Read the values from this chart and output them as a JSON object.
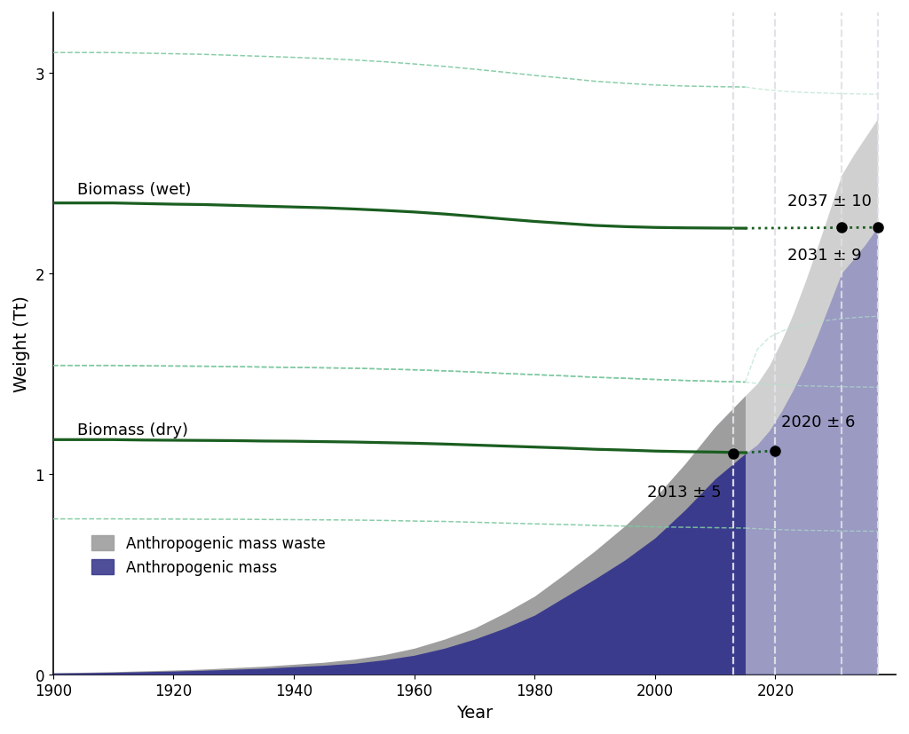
{
  "years_hist": [
    1900,
    1905,
    1910,
    1915,
    1920,
    1925,
    1930,
    1935,
    1940,
    1945,
    1950,
    1955,
    1960,
    1965,
    1970,
    1975,
    1980,
    1985,
    1990,
    1995,
    2000,
    2005,
    2010,
    2015
  ],
  "years_proj": [
    2015,
    2017,
    2019,
    2021,
    2023,
    2025,
    2027,
    2029,
    2031,
    2033,
    2035,
    2037
  ],
  "anthro_mass_hist": [
    0.006,
    0.008,
    0.01,
    0.013,
    0.016,
    0.02,
    0.025,
    0.03,
    0.038,
    0.045,
    0.055,
    0.072,
    0.095,
    0.13,
    0.175,
    0.23,
    0.295,
    0.385,
    0.475,
    0.57,
    0.68,
    0.82,
    0.975,
    1.1
  ],
  "anthro_mass_proj": [
    1.1,
    1.145,
    1.215,
    1.31,
    1.42,
    1.545,
    1.69,
    1.845,
    2.0,
    2.07,
    2.145,
    2.23
  ],
  "anthro_waste_hist": [
    0.008,
    0.01,
    0.013,
    0.017,
    0.021,
    0.026,
    0.033,
    0.04,
    0.05,
    0.06,
    0.075,
    0.098,
    0.13,
    0.175,
    0.23,
    0.305,
    0.39,
    0.5,
    0.615,
    0.74,
    0.88,
    1.05,
    1.235,
    1.39
  ],
  "anthro_waste_proj": [
    1.39,
    1.45,
    1.54,
    1.66,
    1.8,
    1.96,
    2.13,
    2.31,
    2.49,
    2.59,
    2.68,
    2.77
  ],
  "biomass_dry_hist": [
    1.17,
    1.17,
    1.17,
    1.168,
    1.167,
    1.166,
    1.165,
    1.163,
    1.162,
    1.16,
    1.158,
    1.155,
    1.152,
    1.148,
    1.143,
    1.138,
    1.133,
    1.128,
    1.122,
    1.118,
    1.113,
    1.11,
    1.108,
    1.105
  ],
  "biomass_dry_proj": [
    1.105,
    1.108,
    1.112,
    1.115,
    1.117,
    1.118,
    1.118,
    1.117,
    1.116,
    1.115,
    1.114,
    1.113
  ],
  "biomass_wet_hist": [
    2.35,
    2.35,
    2.35,
    2.347,
    2.344,
    2.342,
    2.338,
    2.334,
    2.33,
    2.326,
    2.32,
    2.313,
    2.305,
    2.295,
    2.283,
    2.27,
    2.258,
    2.248,
    2.238,
    2.232,
    2.228,
    2.226,
    2.225,
    2.224
  ],
  "biomass_wet_proj": [
    2.224,
    2.226,
    2.228,
    2.229,
    2.23,
    2.23,
    2.23,
    2.229,
    2.229,
    2.228,
    2.228,
    2.228
  ],
  "biomass_dry_upper_hist": [
    1.54,
    1.54,
    1.54,
    1.538,
    1.537,
    1.536,
    1.534,
    1.532,
    1.53,
    1.528,
    1.526,
    1.522,
    1.518,
    1.513,
    1.507,
    1.5,
    1.494,
    1.488,
    1.481,
    1.476,
    1.47,
    1.465,
    1.461,
    1.457
  ],
  "biomass_dry_lower_hist": [
    0.775,
    0.775,
    0.775,
    0.774,
    0.774,
    0.773,
    0.773,
    0.772,
    0.771,
    0.77,
    0.769,
    0.767,
    0.764,
    0.762,
    0.758,
    0.754,
    0.75,
    0.747,
    0.742,
    0.739,
    0.735,
    0.733,
    0.731,
    0.729
  ],
  "biomass_wet_upper_hist": [
    3.1,
    3.1,
    3.1,
    3.097,
    3.094,
    3.091,
    3.086,
    3.081,
    3.076,
    3.07,
    3.063,
    3.054,
    3.043,
    3.031,
    3.017,
    3.002,
    2.986,
    2.972,
    2.957,
    2.947,
    2.938,
    2.933,
    2.93,
    2.928
  ],
  "biomass_wet_lower_hist": [
    1.54,
    1.54,
    1.54,
    1.538,
    1.537,
    1.536,
    1.534,
    1.532,
    1.53,
    1.528,
    1.526,
    1.522,
    1.518,
    1.513,
    1.507,
    1.5,
    1.494,
    1.488,
    1.481,
    1.476,
    1.47,
    1.465,
    1.461,
    1.457
  ],
  "biomass_dry_upper_proj": [
    1.457,
    1.45,
    1.445,
    1.442,
    1.44,
    1.438,
    1.437,
    1.435,
    1.434,
    1.433,
    1.432,
    1.431
  ],
  "biomass_dry_lower_proj": [
    0.729,
    0.726,
    0.723,
    0.721,
    0.719,
    0.718,
    0.717,
    0.716,
    0.715,
    0.714,
    0.714,
    0.713
  ],
  "biomass_wet_upper_proj": [
    2.928,
    2.92,
    2.913,
    2.908,
    2.904,
    2.901,
    2.899,
    2.897,
    2.895,
    2.894,
    2.893,
    2.892
  ],
  "biomass_wet_lower_proj": [
    1.457,
    1.62,
    1.68,
    1.71,
    1.73,
    1.745,
    1.757,
    1.766,
    1.773,
    1.778,
    1.782,
    1.785
  ],
  "xlim": [
    1900,
    2040
  ],
  "ylim": [
    0,
    3.3
  ],
  "yticks": [
    0,
    1,
    2,
    3
  ],
  "xticks": [
    1900,
    1920,
    1940,
    1960,
    1980,
    2000,
    2020
  ],
  "color_biomass_main": "#1a5e20",
  "color_biomass_sd_dark": "#7dc8a0",
  "color_biomass_sd_light": "#b0e0c8",
  "color_anthro_dark": "#3b3b8e",
  "color_anthro_light": "#8888bf",
  "color_waste_dark": "#9e9e9e",
  "color_waste_light": "#c8c8c8",
  "color_vline": "#e0e0e8",
  "xlabel": "Year",
  "ylabel": "Weight (Tt)",
  "background_color": "#ffffff",
  "label_biomass_wet": "Biomass (wet)",
  "label_biomass_dry": "Biomass (dry)",
  "label_waste": "Anthropogenic mass waste",
  "label_anthro": "Anthropogenic mass",
  "annotation_2013": "2013 ± 5",
  "annotation_2020": "2020 ± 6",
  "annotation_2031": "2031 ± 9",
  "annotation_2037": "2037 ± 10",
  "dot_2013_x": 2013,
  "dot_2013_y": 1.1,
  "dot_2020_x": 2020,
  "dot_2020_y": 1.115,
  "dot_2031_x": 2031,
  "dot_2031_y": 2.228,
  "dot_2037_x": 2037,
  "dot_2037_y": 2.228
}
